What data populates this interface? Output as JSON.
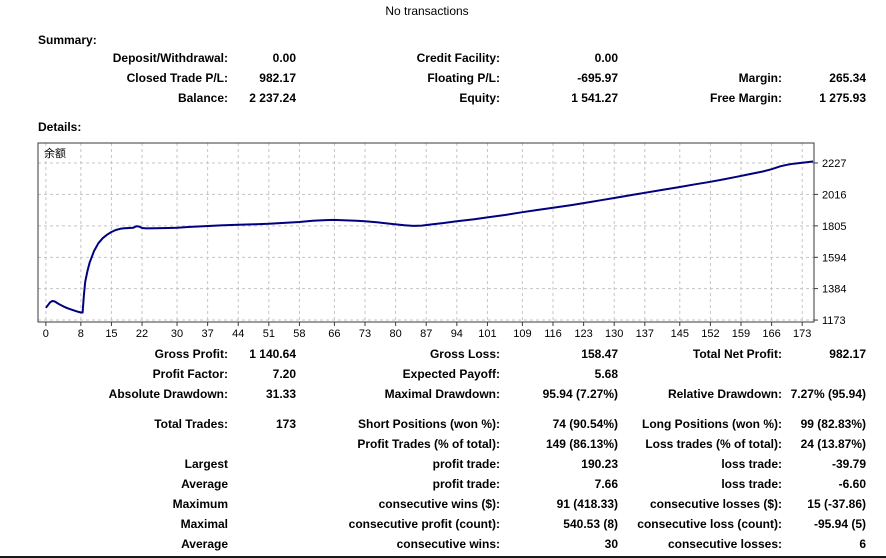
{
  "title": "No transactions",
  "summary": {
    "heading": "Summary:",
    "rows": [
      [
        "Deposit/Withdrawal:",
        "0.00",
        "Credit Facility:",
        "0.00",
        "",
        ""
      ],
      [
        "Closed Trade P/L:",
        "982.17",
        "Floating P/L:",
        "-695.97",
        "Margin:",
        "265.34"
      ],
      [
        "Balance:",
        "2 237.24",
        "Equity:",
        "1 541.27",
        "Free Margin:",
        "1 275.93"
      ]
    ]
  },
  "details": {
    "heading": "Details:",
    "stats_rows_a": [
      [
        "Gross Profit:",
        "1 140.64",
        "Gross Loss:",
        "158.47",
        "Total Net Profit:",
        "982.17"
      ],
      [
        "Profit Factor:",
        "7.20",
        "Expected Payoff:",
        "5.68",
        "",
        ""
      ],
      [
        "Absolute Drawdown:",
        "31.33",
        "Maximal Drawdown:",
        "95.94 (7.27%)",
        "Relative Drawdown:",
        "7.27% (95.94)"
      ]
    ],
    "stats_rows_b": [
      [
        "Total Trades:",
        "173",
        "Short Positions (won %):",
        "74 (90.54%)",
        "Long Positions (won %):",
        "99 (82.83%)"
      ],
      [
        "",
        "",
        "Profit Trades (% of total):",
        "149 (86.13%)",
        "Loss trades (% of total):",
        "24 (13.87%)"
      ],
      [
        "Largest",
        "",
        "profit trade:",
        "190.23",
        "loss trade:",
        "-39.79"
      ],
      [
        "Average",
        "",
        "profit trade:",
        "7.66",
        "loss trade:",
        "-6.60"
      ],
      [
        "Maximum",
        "",
        "consecutive wins ($):",
        "91 (418.33)",
        "consecutive losses ($):",
        "15 (-37.86)"
      ],
      [
        "Maximal",
        "",
        "consecutive profit (count):",
        "540.53 (8)",
        "consecutive loss (count):",
        "-95.94 (5)"
      ],
      [
        "Average",
        "",
        "consecutive wins:",
        "30",
        "consecutive losses:",
        "6"
      ]
    ]
  },
  "chart_data": {
    "type": "line",
    "title": "余额",
    "legend_label": "余额",
    "xlabel": "",
    "ylabel": "",
    "grid": true,
    "line_color": "#000080",
    "grid_color": "#c4c4c4",
    "border_color": "#3a3a3a",
    "xlim": [
      -1.8,
      175.7
    ],
    "ylim": [
      1160,
      2361
    ],
    "x_ticks": [
      0,
      8,
      15,
      22,
      30,
      37,
      44,
      51,
      58,
      66,
      73,
      80,
      87,
      94,
      101,
      109,
      116,
      123,
      130,
      137,
      145,
      152,
      159,
      166,
      173
    ],
    "y_ticks": [
      2227,
      2016,
      1805,
      1594,
      1384,
      1173
    ],
    "series": [
      {
        "name": "余额",
        "points": [
          [
            0,
            1255
          ],
          [
            1,
            1293
          ],
          [
            1.5,
            1301
          ],
          [
            2,
            1298
          ],
          [
            3,
            1280
          ],
          [
            4,
            1265
          ],
          [
            5,
            1252
          ],
          [
            6,
            1242
          ],
          [
            7,
            1232
          ],
          [
            8,
            1224
          ],
          [
            8.4,
            1224
          ],
          [
            8.7,
            1340
          ],
          [
            9,
            1430
          ],
          [
            9.5,
            1500
          ],
          [
            10,
            1558
          ],
          [
            11,
            1636
          ],
          [
            12,
            1688
          ],
          [
            13,
            1722
          ],
          [
            14,
            1746
          ],
          [
            15,
            1764
          ],
          [
            16,
            1777
          ],
          [
            17,
            1785
          ],
          [
            18,
            1789
          ],
          [
            19,
            1791
          ],
          [
            20,
            1793
          ],
          [
            20.7,
            1803
          ],
          [
            21.4,
            1800
          ],
          [
            22,
            1791
          ],
          [
            23,
            1788
          ],
          [
            25,
            1789
          ],
          [
            28,
            1791
          ],
          [
            30,
            1792
          ],
          [
            33,
            1798
          ],
          [
            36,
            1803
          ],
          [
            40,
            1808
          ],
          [
            44,
            1812
          ],
          [
            48,
            1816
          ],
          [
            51,
            1819
          ],
          [
            54,
            1824
          ],
          [
            58,
            1831
          ],
          [
            61,
            1840
          ],
          [
            64,
            1844
          ],
          [
            66,
            1845
          ],
          [
            68,
            1843
          ],
          [
            71,
            1839
          ],
          [
            73,
            1836
          ],
          [
            76,
            1828
          ],
          [
            79,
            1818
          ],
          [
            82,
            1809
          ],
          [
            84,
            1805
          ],
          [
            86,
            1807
          ],
          [
            88,
            1814
          ],
          [
            91,
            1824
          ],
          [
            94,
            1836
          ],
          [
            98,
            1850
          ],
          [
            101,
            1862
          ],
          [
            105,
            1878
          ],
          [
            109,
            1897
          ],
          [
            112,
            1910
          ],
          [
            116,
            1926
          ],
          [
            120,
            1944
          ],
          [
            123,
            1958
          ],
          [
            127,
            1977
          ],
          [
            130,
            1992
          ],
          [
            134,
            2012
          ],
          [
            137,
            2027
          ],
          [
            141,
            2046
          ],
          [
            145,
            2066
          ],
          [
            148,
            2081
          ],
          [
            152,
            2101
          ],
          [
            155,
            2117
          ],
          [
            158,
            2134
          ],
          [
            161,
            2152
          ],
          [
            164,
            2170
          ],
          [
            166,
            2185
          ],
          [
            168,
            2205
          ],
          [
            169.5,
            2215
          ],
          [
            171,
            2222
          ],
          [
            173,
            2228
          ],
          [
            175.5,
            2237
          ]
        ]
      }
    ]
  },
  "colors": {
    "background": "#ffffff",
    "text": "#000000",
    "curve": "#000080",
    "bottom_rule": "#1a1a1a"
  }
}
